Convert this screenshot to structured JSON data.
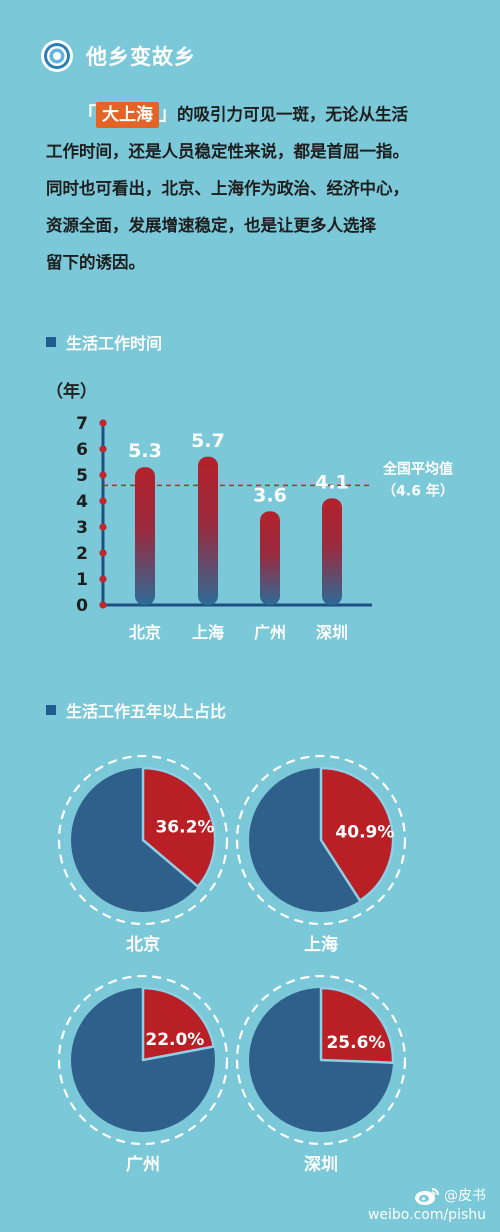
{
  "header": {
    "title": "他乡变故乡"
  },
  "intro": {
    "bracket_open": "「",
    "highlight": "大上海",
    "bracket_close": "」",
    "line1_rest": "的吸引力可见一斑，无论从生活",
    "line2": "工作时间，还是人员稳定性来说，都是首屈一指。",
    "line3": "同时也可看出，北京、上海作为政治、经济中心，",
    "line4": "资源全面，发展增速稳定，也是让更多人选择",
    "line5": "留下的诱因。"
  },
  "section1": {
    "title": "生活工作时间",
    "unit": "（年）"
  },
  "section2": {
    "title": "生活工作五年以上占比"
  },
  "chart_data": [
    {
      "type": "bar",
      "categories": [
        "北京",
        "上海",
        "广州",
        "深圳"
      ],
      "values": [
        5.3,
        5.7,
        3.6,
        4.1
      ],
      "value_labels": [
        "5.3",
        "5.7",
        "3.6",
        "4.1"
      ],
      "ylabel": "（年）",
      "ylim": [
        0,
        7
      ],
      "yticks": [
        "0",
        "1",
        "2",
        "3",
        "4",
        "5",
        "6",
        "7"
      ],
      "reference_line": {
        "value": 4.6,
        "label_line1": "全国平均值",
        "label_line2": "（4.6 年）"
      },
      "colors": {
        "bar_top": "#b3222b",
        "bar_bottom": "#2e6b97",
        "axis": "#1f4f82",
        "tick_dot": "#c0272d",
        "ref_line": "#c0272d"
      }
    },
    {
      "type": "pie",
      "title": "生活工作五年以上占比",
      "charts": [
        {
          "label": "北京",
          "value": 36.2,
          "value_label": "36.2%"
        },
        {
          "label": "上海",
          "value": 40.9,
          "value_label": "40.9%"
        },
        {
          "label": "广州",
          "value": 22.0,
          "value_label": "22.0%"
        },
        {
          "label": "深圳",
          "value": 25.6,
          "value_label": "25.6%"
        }
      ],
      "colors": {
        "highlight": "#b92026",
        "rest": "#2f5f8b",
        "ring": "#ffffff"
      }
    }
  ],
  "watermark": {
    "name": "@皮书",
    "url": "weibo.com/pishu"
  }
}
